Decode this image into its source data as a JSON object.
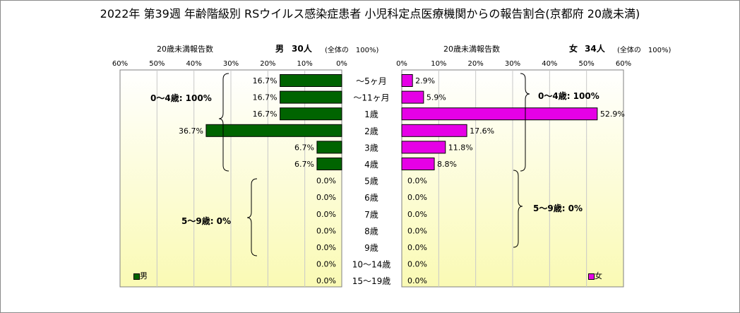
{
  "title": "2022年 第39週 年齢階級別 RSウイルス感染症患者 小児科定点医療機関からの報告割合(京都府 20歳未満)",
  "chart_data": {
    "type": "bar",
    "categories": [
      "〜5ヶ月",
      "〜11ヶ月",
      "1歳",
      "2歳",
      "3歳",
      "4歳",
      "5歳",
      "6歳",
      "7歳",
      "8歳",
      "9歳",
      "10〜14歳",
      "15〜19歳"
    ],
    "xlim": [
      0,
      60
    ],
    "ticks": [
      "60%",
      "50%",
      "40%",
      "30%",
      "20%",
      "10%",
      "0%"
    ],
    "ticks_right": [
      "0%",
      "10%",
      "20%",
      "30%",
      "40%",
      "50%",
      "60%"
    ],
    "colors": {
      "male": "#006400",
      "female": "#e600e6",
      "panel_top": "#ffffff",
      "panel_bottom": "#fafab4"
    },
    "male": {
      "header": "男",
      "count_label": "30人",
      "total_note": "(全体の　100%)",
      "axis_title": "20歳未満報告数",
      "legend": "男",
      "values": [
        16.7,
        16.7,
        16.7,
        36.7,
        6.7,
        6.7,
        0.0,
        0.0,
        0.0,
        0.0,
        0.0,
        0.0,
        0.0
      ],
      "labels": [
        "16.7%",
        "16.7%",
        "16.7%",
        "36.7%",
        "6.7%",
        "6.7%",
        "0.0%",
        "0.0%",
        "0.0%",
        "0.0%",
        "0.0%",
        "0.0%",
        "0.0%"
      ],
      "group1": "0〜4歳: 100%",
      "group2": "5〜9歳: 0%"
    },
    "female": {
      "header": "女",
      "count_label": "34人",
      "total_note": "(全体の　100%)",
      "axis_title": "20歳未満報告数",
      "legend": "女",
      "values": [
        2.9,
        5.9,
        52.9,
        17.6,
        11.8,
        8.8,
        0.0,
        0.0,
        0.0,
        0.0,
        0.0,
        0.0,
        0.0
      ],
      "labels": [
        "2.9%",
        "5.9%",
        "52.9%",
        "17.6%",
        "11.8%",
        "8.8%",
        "0.0%",
        "0.0%",
        "0.0%",
        "0.0%",
        "0.0%",
        "0.0%",
        "0.0%"
      ],
      "group1": "0〜4歳: 100%",
      "group2": "5〜9歳: 0%"
    }
  }
}
